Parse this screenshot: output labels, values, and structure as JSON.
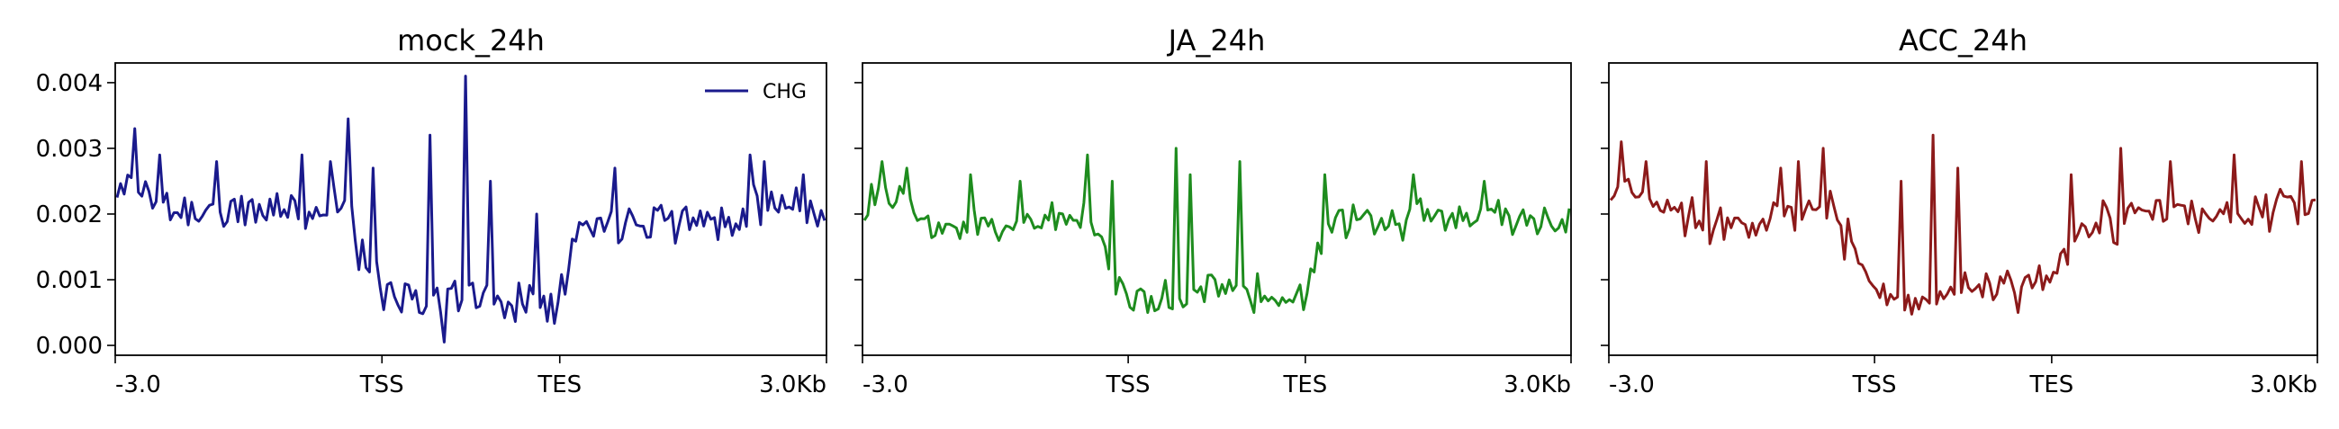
{
  "chart_data": [
    {
      "type": "line",
      "title": "mock_24h",
      "xlabel": "",
      "ylabel": "",
      "x_ticks": [
        "-3.0",
        "TSS",
        "TES",
        "3.0Kb"
      ],
      "y_ticks": [
        "0.000",
        "0.001",
        "0.002",
        "0.003",
        "0.004"
      ],
      "ylim": [
        -0.00015,
        0.0043
      ],
      "show_y_tick_labels": true,
      "legend": {
        "show": true,
        "placement": "top-right",
        "entries": [
          "CHG"
        ]
      },
      "series": [
        {
          "name": "CHG",
          "color": "#1a1a8c",
          "profile": [
            [
              0,
              0.0022
            ],
            [
              3,
              0.0025
            ],
            [
              8,
              0.0023
            ],
            [
              15,
              0.0021
            ],
            [
              25,
              0.002
            ],
            [
              35,
              0.002
            ],
            [
              45,
              0.0021
            ],
            [
              55,
              0.002
            ],
            [
              62,
              0.0022
            ],
            [
              65,
              0.0023
            ],
            [
              68,
              0.0014
            ],
            [
              72,
              0.001
            ],
            [
              80,
              0.0008
            ],
            [
              90,
              0.0007
            ],
            [
              100,
              0.0007
            ],
            [
              110,
              0.0007
            ],
            [
              120,
              0.0007
            ],
            [
              125,
              0.0009
            ],
            [
              130,
              0.0018
            ],
            [
              140,
              0.0019
            ],
            [
              150,
              0.002
            ],
            [
              160,
              0.0019
            ],
            [
              170,
              0.0019
            ],
            [
              180,
              0.0021
            ],
            [
              190,
              0.0022
            ],
            [
              199,
              0.002
            ]
          ],
          "noise": 0.00032,
          "seed": 11,
          "spikes": [
            [
              5,
              0.0033
            ],
            [
              12,
              0.0029
            ],
            [
              28,
              0.0028
            ],
            [
              52,
              0.0029
            ],
            [
              60,
              0.0028
            ],
            [
              65,
              0.00345
            ],
            [
              72,
              0.0027
            ],
            [
              88,
              0.0032
            ],
            [
              92,
              5e-05
            ],
            [
              98,
              0.0041
            ],
            [
              100,
              0.00095
            ],
            [
              105,
              0.0025
            ],
            [
              118,
              0.002
            ],
            [
              140,
              0.0027
            ],
            [
              178,
              0.0029
            ],
            [
              182,
              0.0028
            ],
            [
              193,
              0.0026
            ]
          ]
        }
      ]
    },
    {
      "type": "line",
      "title": "JA_24h",
      "xlabel": "",
      "ylabel": "",
      "x_ticks": [
        "-3.0",
        "TSS",
        "TES",
        "3.0Kb"
      ],
      "y_ticks": [
        "0.000",
        "0.001",
        "0.002",
        "0.003",
        "0.004"
      ],
      "ylim": [
        -0.00015,
        0.0043
      ],
      "show_y_tick_labels": false,
      "legend": {
        "show": false
      },
      "series": [
        {
          "name": "",
          "color": "#1e8c1e",
          "profile": [
            [
              0,
              0.0021
            ],
            [
              3,
              0.0023
            ],
            [
              8,
              0.0022
            ],
            [
              15,
              0.0019
            ],
            [
              25,
              0.0018
            ],
            [
              35,
              0.0018
            ],
            [
              45,
              0.0019
            ],
            [
              55,
              0.0019
            ],
            [
              62,
              0.002
            ],
            [
              67,
              0.0016
            ],
            [
              72,
              0.0009
            ],
            [
              80,
              0.0006
            ],
            [
              90,
              0.0008
            ],
            [
              100,
              0.001
            ],
            [
              110,
              0.0008
            ],
            [
              120,
              0.0006
            ],
            [
              125,
              0.0009
            ],
            [
              130,
              0.0017
            ],
            [
              140,
              0.0019
            ],
            [
              150,
              0.0019
            ],
            [
              160,
              0.002
            ],
            [
              170,
              0.002
            ],
            [
              180,
              0.002
            ],
            [
              190,
              0.0019
            ],
            [
              199,
              0.0019
            ]
          ],
          "noise": 0.00026,
          "seed": 23,
          "spikes": [
            [
              5,
              0.0028
            ],
            [
              12,
              0.0027
            ],
            [
              30,
              0.0026
            ],
            [
              44,
              0.0025
            ],
            [
              63,
              0.0029
            ],
            [
              70,
              0.0025
            ],
            [
              80,
              0.0005
            ],
            [
              88,
              0.003
            ],
            [
              92,
              0.0026
            ],
            [
              106,
              0.0028
            ],
            [
              110,
              0.0005
            ],
            [
              130,
              0.0026
            ],
            [
              155,
              0.0026
            ],
            [
              175,
              0.0025
            ]
          ]
        }
      ]
    },
    {
      "type": "line",
      "title": "ACC_24h",
      "xlabel": "",
      "ylabel": "",
      "x_ticks": [
        "-3.0",
        "TSS",
        "TES",
        "3.0Kb"
      ],
      "y_ticks": [
        "0.000",
        "0.001",
        "0.002",
        "0.003",
        "0.004"
      ],
      "ylim": [
        -0.00015,
        0.0043
      ],
      "show_y_tick_labels": false,
      "legend": {
        "show": false
      },
      "series": [
        {
          "name": "",
          "color": "#8c1a1a",
          "profile": [
            [
              0,
              0.0022
            ],
            [
              3,
              0.0024
            ],
            [
              8,
              0.0023
            ],
            [
              15,
              0.0021
            ],
            [
              25,
              0.0019
            ],
            [
              35,
              0.0019
            ],
            [
              45,
              0.002
            ],
            [
              55,
              0.002
            ],
            [
              62,
              0.0021
            ],
            [
              68,
              0.0015
            ],
            [
              72,
              0.001
            ],
            [
              80,
              0.0008
            ],
            [
              90,
              0.0007
            ],
            [
              100,
              0.0009
            ],
            [
              110,
              0.0008
            ],
            [
              120,
              0.0009
            ],
            [
              125,
              0.0011
            ],
            [
              130,
              0.0016
            ],
            [
              140,
              0.0019
            ],
            [
              150,
              0.002
            ],
            [
              160,
              0.002
            ],
            [
              170,
              0.0019
            ],
            [
              180,
              0.002
            ],
            [
              190,
              0.0022
            ],
            [
              199,
              0.0019
            ]
          ],
          "noise": 0.00028,
          "seed": 37,
          "spikes": [
            [
              3,
              0.0031
            ],
            [
              10,
              0.0028
            ],
            [
              27,
              0.0028
            ],
            [
              48,
              0.0027
            ],
            [
              53,
              0.0028
            ],
            [
              60,
              0.003
            ],
            [
              82,
              0.0025
            ],
            [
              91,
              0.0032
            ],
            [
              98,
              0.0027
            ],
            [
              115,
              0.0005
            ],
            [
              130,
              0.0026
            ],
            [
              144,
              0.003
            ],
            [
              158,
              0.0028
            ],
            [
              176,
              0.0029
            ],
            [
              195,
              0.0028
            ]
          ]
        }
      ]
    }
  ]
}
